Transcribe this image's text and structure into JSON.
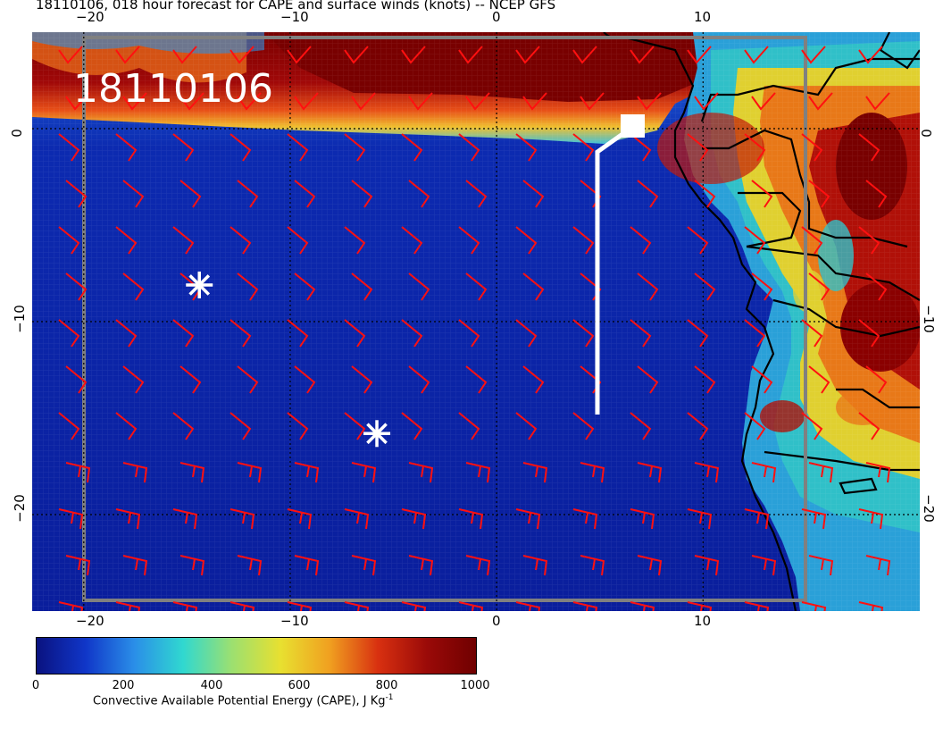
{
  "title": "18110106, 018 hour forecast for CAPE and surface winds (knots) -- NCEP GFS",
  "stamp": "18110106",
  "axes": {
    "top_lon_labels": [
      "−20",
      "−10",
      "0",
      "10"
    ],
    "bottom_lon_labels": [
      "−20",
      "−10",
      "0",
      "10"
    ],
    "left_lat_labels": [
      "0",
      "−10",
      "−20"
    ],
    "right_lat_labels": [
      "0",
      "−10",
      "−20"
    ]
  },
  "colorbar": {
    "ticks": [
      "0",
      "200",
      "400",
      "600",
      "800",
      "1000"
    ],
    "label": "Convective Available Potential Energy (CAPE), J Kg",
    "label_exponent": "-1",
    "colors": [
      "#0a1280",
      "#1036c8",
      "#2a8ee8",
      "#30d8d0",
      "#9ce070",
      "#e8e030",
      "#f0a020",
      "#d83010",
      "#9a0a08",
      "#700000"
    ]
  },
  "map_data": {
    "type": "wind_cape_map",
    "lon_range": [
      -22.5,
      20.5
    ],
    "lat_range": [
      -25,
      5
    ],
    "graticule_lon": [
      -20,
      -10,
      0,
      10
    ],
    "graticule_lat": [
      0,
      -10,
      -20
    ],
    "markers": [
      {
        "name": "asterisk",
        "lon": -14.4,
        "lat": -8.1
      },
      {
        "name": "asterisk",
        "lon": -5.8,
        "lat": -15.8
      }
    ],
    "track_marker": {
      "lon": 6.7,
      "lat": 0.1
    }
  }
}
